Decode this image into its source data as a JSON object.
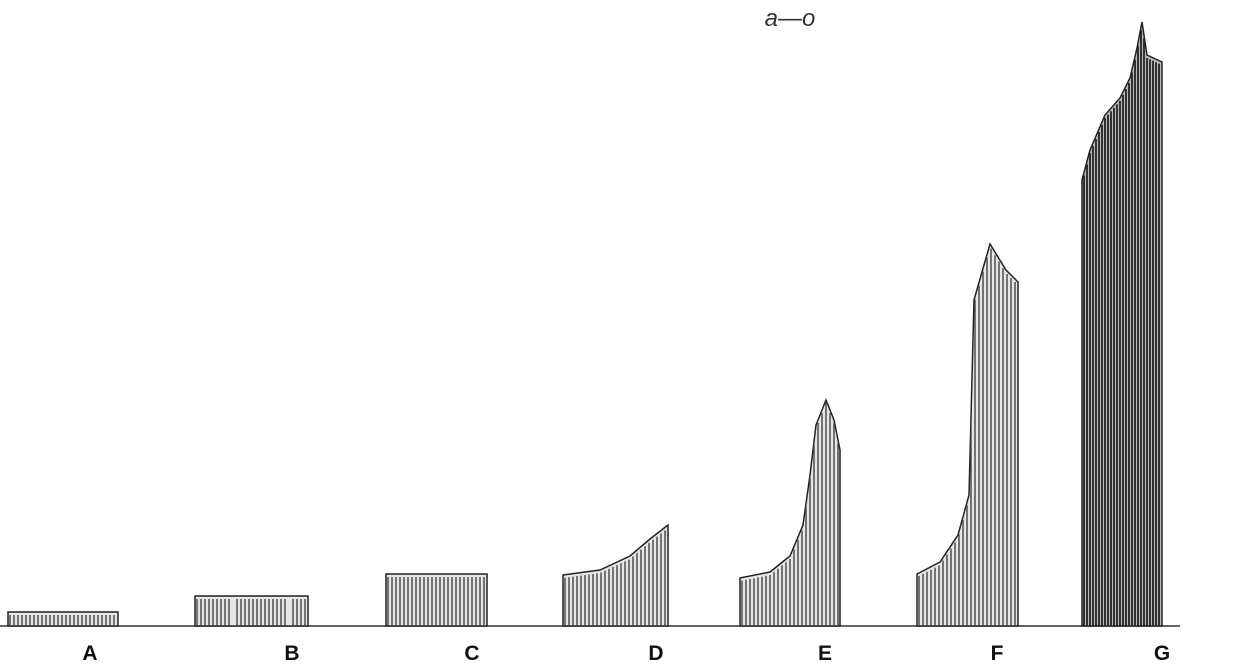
{
  "annotation": "a—o",
  "panels": [
    {
      "label": "A"
    },
    {
      "label": "B"
    },
    {
      "label": "C"
    },
    {
      "label": "D"
    },
    {
      "label": "E"
    },
    {
      "label": "F"
    },
    {
      "label": "G"
    }
  ]
}
